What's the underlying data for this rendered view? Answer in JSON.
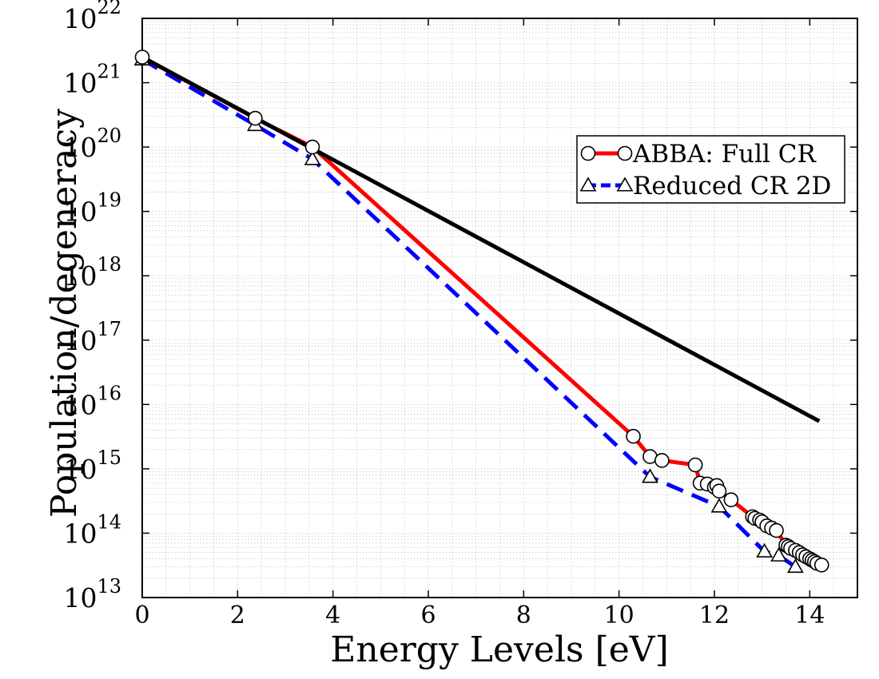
{
  "chart_data": {
    "type": "line",
    "xlabel": "Energy Levels [eV]",
    "ylabel": "Population/degeneracy",
    "xlim": [
      0,
      15
    ],
    "ylim_exponent": [
      13,
      22
    ],
    "y_scale": "log",
    "grid": true,
    "legend_placement": "top-right",
    "x_ticks": [
      "0",
      "2",
      "4",
      "6",
      "8",
      "10",
      "12",
      "14"
    ],
    "y_tick_base": "10",
    "y_ticks_exponents": [
      "13",
      "14",
      "15",
      "16",
      "17",
      "18",
      "19",
      "20",
      "21",
      "22"
    ],
    "series": [
      {
        "name": "",
        "color": "#000000",
        "style": "solid",
        "marker": "none",
        "points": [
          [
            0,
            2.5e+21
          ],
          [
            14.2,
            5500000000000000.0
          ]
        ]
      },
      {
        "name": "ABBA: Full CR",
        "color": "#ff0000",
        "style": "solid",
        "marker": "circle",
        "points": [
          [
            0,
            2.5e+21
          ],
          [
            2.37,
            2.8e+20
          ],
          [
            3.57,
            1e+20
          ],
          [
            10.3,
            3200000000000000.0
          ],
          [
            10.65,
            1550000000000000.0
          ],
          [
            10.9,
            1350000000000000.0
          ],
          [
            11.6,
            1150000000000000.0
          ],
          [
            11.7,
            600000000000000.0
          ],
          [
            11.85,
            580000000000000.0
          ],
          [
            12.0,
            520000000000000.0
          ],
          [
            12.05,
            550000000000000.0
          ],
          [
            12.1,
            450000000000000.0
          ],
          [
            12.35,
            330000000000000.0
          ],
          [
            12.8,
            180000000000000.0
          ],
          [
            12.85,
            170000000000000.0
          ],
          [
            12.95,
            160000000000000.0
          ],
          [
            13.0,
            150000000000000.0
          ],
          [
            13.1,
            130000000000000.0
          ],
          [
            13.2,
            120000000000000.0
          ],
          [
            13.3,
            110000000000000.0
          ],
          [
            13.5,
            65000000000000.0
          ],
          [
            13.55,
            62000000000000.0
          ],
          [
            13.6,
            58000000000000.0
          ],
          [
            13.7,
            54000000000000.0
          ],
          [
            13.78,
            50000000000000.0
          ],
          [
            13.85,
            46000000000000.0
          ],
          [
            13.92,
            43000000000000.0
          ],
          [
            14.0,
            40000000000000.0
          ],
          [
            14.05,
            38000000000000.0
          ],
          [
            14.1,
            36000000000000.0
          ],
          [
            14.15,
            34000000000000.0
          ],
          [
            14.25,
            32000000000000.0
          ]
        ]
      },
      {
        "name": "Reduced CR 2D",
        "color": "#0000ff",
        "style": "dashed",
        "marker": "triangle",
        "points": [
          [
            0,
            2.3e+21
          ],
          [
            2.37,
            2.2e+20
          ],
          [
            3.57,
            6.5e+19
          ],
          [
            10.65,
            750000000000000.0
          ],
          [
            12.1,
            260000000000000.0
          ],
          [
            13.05,
            52000000000000.0
          ],
          [
            13.35,
            45000000000000.0
          ],
          [
            13.7,
            30000000000000.0
          ]
        ]
      }
    ]
  }
}
